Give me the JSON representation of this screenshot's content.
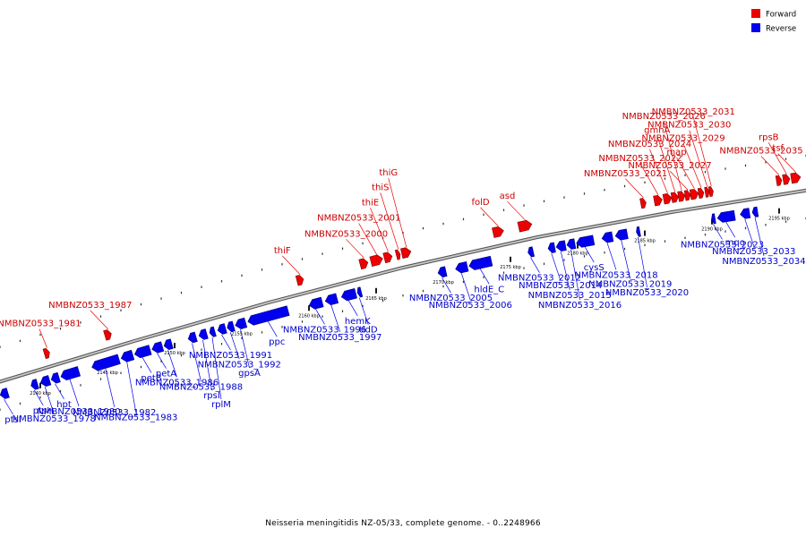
{
  "caption": "Neisseria meningitidis NZ-05/33, complete genome. - 0..2248966",
  "legend": [
    {
      "label": "Forward",
      "color": "#ee0000"
    },
    {
      "label": "Reverse",
      "color": "#0000ee"
    }
  ],
  "colors": {
    "forward": "#ee0000",
    "reverse": "#0000ee",
    "backbone": "#999999"
  },
  "axis": {
    "start_kbp": 2137,
    "end_kbp": 2197
  },
  "ticks": [
    "2140 kbp",
    "2145 kbp",
    "2150 kbp",
    "2155 kbp",
    "2160 kbp",
    "2165 kbp",
    "2170 kbp",
    "2175 kbp",
    "2180 kbp",
    "2185 kbp",
    "2190 kbp",
    "2195 kbp"
  ],
  "tick_kbp": [
    2140,
    2145,
    2150,
    2155,
    2160,
    2165,
    2170,
    2175,
    2180,
    2185,
    2190,
    2195
  ],
  "genes": [
    {
      "label": "ptsI",
      "strand": "reverse",
      "start": 2137.0,
      "end": 2137.6
    },
    {
      "label": "ptsH",
      "strand": "reverse",
      "start": 2139.3,
      "end": 2139.8
    },
    {
      "label": "NMBNZ0533_1978",
      "strand": "reverse",
      "start": 2140.0,
      "end": 2140.7
    },
    {
      "label": "NMBNZ0533_1981",
      "strand": "forward",
      "start": 2140.3,
      "end": 2140.7
    },
    {
      "label": "hpt",
      "strand": "reverse",
      "start": 2140.8,
      "end": 2141.4
    },
    {
      "label": "NMBNZ0533_1980",
      "strand": "reverse",
      "start": 2141.5,
      "end": 2142.9
    },
    {
      "label": "NMBNZ0533_1982",
      "strand": "reverse",
      "start": 2143.8,
      "end": 2145.9
    },
    {
      "label": "NMBNZ0533_1987",
      "strand": "forward",
      "start": 2144.8,
      "end": 2145.3
    },
    {
      "label": "NMBNZ0533_1983",
      "strand": "reverse",
      "start": 2146.0,
      "end": 2146.9
    },
    {
      "label": "petB",
      "strand": "reverse",
      "start": 2147.0,
      "end": 2148.2
    },
    {
      "label": "petA",
      "strand": "reverse",
      "start": 2148.3,
      "end": 2149.1
    },
    {
      "label": "NMBNZ0533_1986",
      "strand": "reverse",
      "start": 2149.2,
      "end": 2149.8
    },
    {
      "label": "NMBNZ0533_1988",
      "strand": "reverse",
      "start": 2151.0,
      "end": 2151.6
    },
    {
      "label": "rpsI",
      "strand": "reverse",
      "start": 2151.8,
      "end": 2152.4
    },
    {
      "label": "rplM",
      "strand": "reverse",
      "start": 2152.6,
      "end": 2153.0
    },
    {
      "label": "NMBNZ0533_1991",
      "strand": "reverse",
      "start": 2153.2,
      "end": 2153.8
    },
    {
      "label": "NMBNZ0533_1992",
      "strand": "reverse",
      "start": 2153.9,
      "end": 2154.4
    },
    {
      "label": "gpsA",
      "strand": "reverse",
      "start": 2154.5,
      "end": 2155.3
    },
    {
      "label": "ppc",
      "strand": "reverse",
      "start": 2155.4,
      "end": 2158.5
    },
    {
      "label": "thiF",
      "strand": "forward",
      "start": 2159.1,
      "end": 2159.6
    },
    {
      "label": "NMBNZ0533_1996",
      "strand": "reverse",
      "start": 2160.0,
      "end": 2161.0
    },
    {
      "label": "NMBNZ0533_1997",
      "strand": "reverse",
      "start": 2161.2,
      "end": 2162.1
    },
    {
      "label": "hemK",
      "strand": "reverse",
      "start": 2162.4,
      "end": 2163.5
    },
    {
      "label": "tldD",
      "strand": "reverse",
      "start": 2163.6,
      "end": 2163.9
    },
    {
      "label": "NMBNZ0533_2000",
      "strand": "forward",
      "start": 2163.8,
      "end": 2164.4
    },
    {
      "label": "NMBNZ0533_2001",
      "strand": "forward",
      "start": 2164.6,
      "end": 2165.5
    },
    {
      "label": "thiE",
      "strand": "forward",
      "start": 2165.6,
      "end": 2166.2
    },
    {
      "label": "thiS",
      "strand": "forward",
      "start": 2166.5,
      "end": 2166.8
    },
    {
      "label": "thiG",
      "strand": "forward",
      "start": 2166.9,
      "end": 2167.6
    },
    {
      "label": "NMBNZ0533_2005",
      "strand": "reverse",
      "start": 2169.6,
      "end": 2170.2
    },
    {
      "label": "NMBNZ0533_2006",
      "strand": "reverse",
      "start": 2170.9,
      "end": 2171.8
    },
    {
      "label": "hldE_C",
      "strand": "reverse",
      "start": 2171.9,
      "end": 2173.6
    },
    {
      "label": "folD",
      "strand": "forward",
      "start": 2173.7,
      "end": 2174.5
    },
    {
      "label": "asd",
      "strand": "forward",
      "start": 2175.6,
      "end": 2176.6
    },
    {
      "label": "NMBNZ0533_2012",
      "strand": "reverse",
      "start": 2176.3,
      "end": 2176.7
    },
    {
      "label": "NMBNZ0533_2014",
      "strand": "reverse",
      "start": 2177.8,
      "end": 2178.3
    },
    {
      "label": "NMBNZ0533_2015",
      "strand": "reverse",
      "start": 2178.4,
      "end": 2179.1
    },
    {
      "label": "NMBNZ0533_2016",
      "strand": "reverse",
      "start": 2179.2,
      "end": 2179.8
    },
    {
      "label": "cysS",
      "strand": "reverse",
      "start": 2179.9,
      "end": 2181.2
    },
    {
      "label": "NMBNZ0533_2018",
      "strand": "reverse",
      "start": 2181.8,
      "end": 2182.6
    },
    {
      "label": "NMBNZ0533_2019",
      "strand": "reverse",
      "start": 2182.8,
      "end": 2183.7
    },
    {
      "label": "NMBNZ0533_2020",
      "strand": "reverse",
      "start": 2184.4,
      "end": 2184.6
    },
    {
      "label": "NMBNZ0533_2021",
      "strand": "forward",
      "start": 2184.7,
      "end": 2185.1
    },
    {
      "label": "NMBNZ0533_2022",
      "strand": "forward",
      "start": 2185.7,
      "end": 2186.3
    },
    {
      "label": "NMBNZ0533_2024",
      "strand": "forward",
      "start": 2186.4,
      "end": 2187.0
    },
    {
      "label": "gmhA",
      "strand": "forward",
      "start": 2187.0,
      "end": 2187.5
    },
    {
      "label": "NMBNZ0533_2026",
      "strand": "forward",
      "start": 2187.5,
      "end": 2188.0
    },
    {
      "label": "NMBNZ0533_2027",
      "strand": "forward",
      "start": 2188.0,
      "end": 2188.4
    },
    {
      "label": "map",
      "strand": "forward",
      "start": 2188.4,
      "end": 2189.0
    },
    {
      "label": "NMBNZ0533_2029",
      "strand": "forward",
      "start": 2189.0,
      "end": 2189.4
    },
    {
      "label": "NMBNZ0533_2030",
      "strand": "forward",
      "start": 2189.5,
      "end": 2189.8
    },
    {
      "label": "NMBNZ0533_2023",
      "strand": "reverse",
      "start": 2190.0,
      "end": 2190.2
    },
    {
      "label": "NMBNZ0533_2031",
      "strand": "forward",
      "start": 2189.8,
      "end": 2190.1
    },
    {
      "label": "mqo",
      "strand": "reverse",
      "start": 2190.4,
      "end": 2191.7
    },
    {
      "label": "NMBNZ0533_2033",
      "strand": "reverse",
      "start": 2192.1,
      "end": 2192.8
    },
    {
      "label": "NMBNZ0533_2034",
      "strand": "reverse",
      "start": 2193.0,
      "end": 2193.4
    },
    {
      "label": "NMBNZ0533_2035",
      "strand": "forward",
      "start": 2194.8,
      "end": 2195.2
    },
    {
      "label": "rpsB",
      "strand": "forward",
      "start": 2195.3,
      "end": 2195.8
    },
    {
      "label": "tsf",
      "strand": "forward",
      "start": 2195.9,
      "end": 2196.6
    }
  ]
}
